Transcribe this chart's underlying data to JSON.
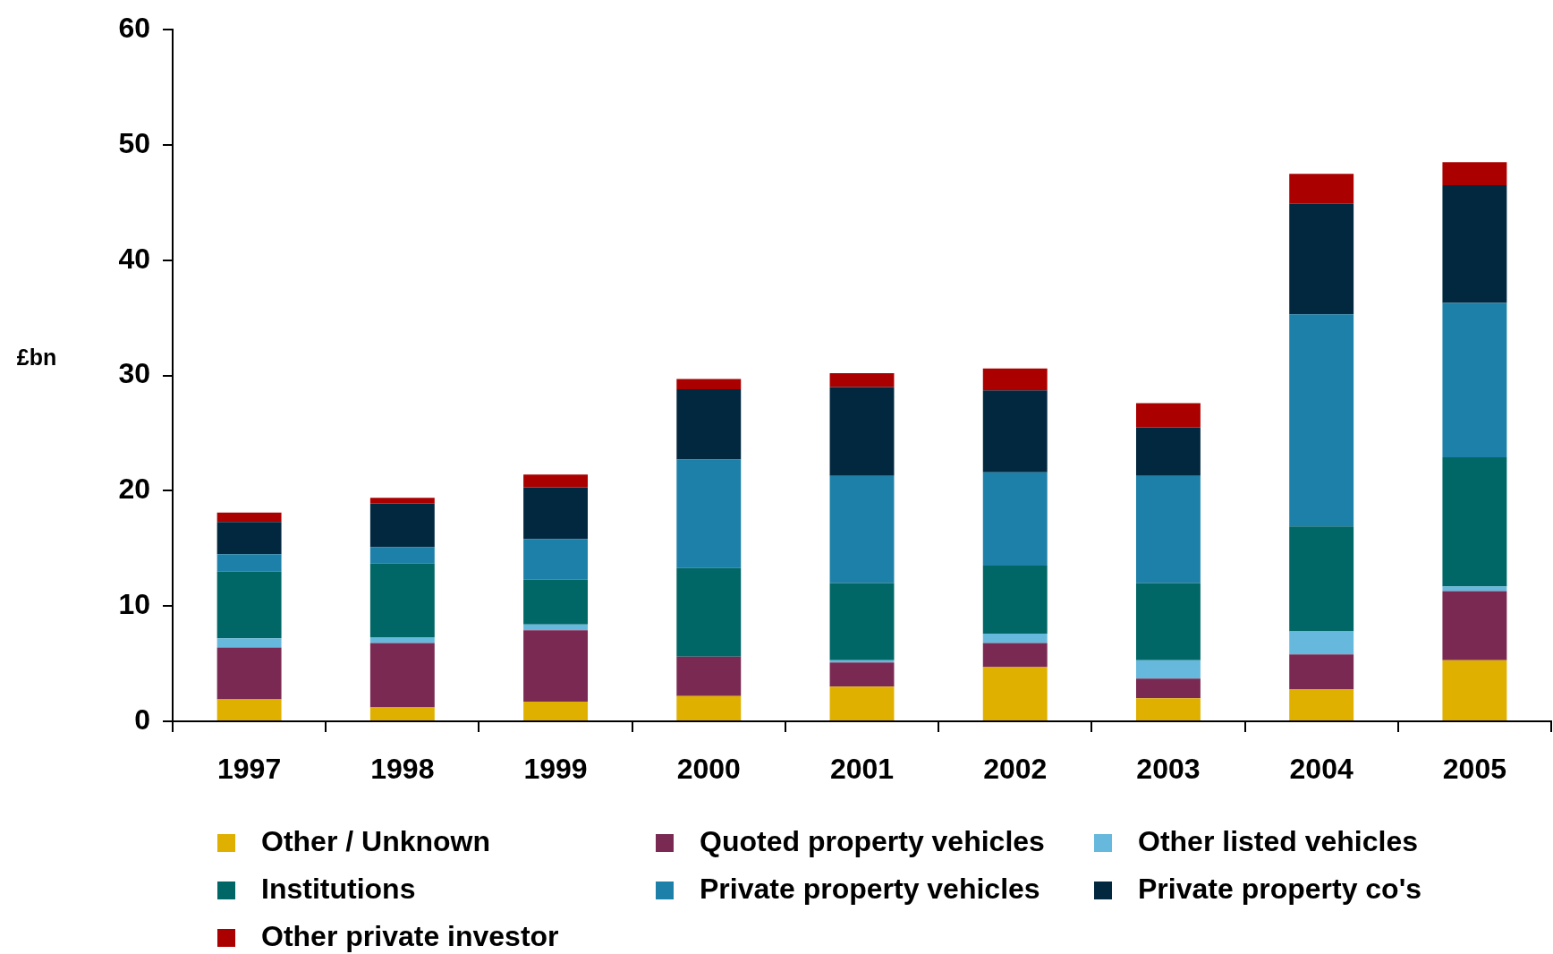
{
  "chart_data": {
    "type": "bar",
    "stacked": true,
    "ylabel": "£bn",
    "legend": "bottom",
    "categories": [
      "1997",
      "1998",
      "1999",
      "2000",
      "2001",
      "2002",
      "2003",
      "2004",
      "2005"
    ],
    "ylim": [
      0,
      60
    ],
    "yticks": [
      0,
      10,
      20,
      30,
      40,
      50,
      60
    ],
    "series": [
      {
        "name": "Other / Unknown",
        "color": "#e0b000",
        "values": [
          1.9,
          1.2,
          1.7,
          2.2,
          3.0,
          4.7,
          2.0,
          2.8,
          5.3
        ]
      },
      {
        "name": "Quoted property vehicles",
        "color": "#7a2a52",
        "values": [
          4.5,
          5.6,
          6.2,
          3.4,
          2.1,
          2.1,
          1.7,
          3.0,
          6.0
        ]
      },
      {
        "name": "Other listed vehicles",
        "color": "#66b8dc",
        "values": [
          0.8,
          0.5,
          0.5,
          0,
          0.2,
          0.8,
          1.6,
          2.0,
          0.4
        ]
      },
      {
        "name": "Institutions",
        "color": "#006666",
        "values": [
          5.8,
          6.4,
          3.9,
          7.7,
          6.7,
          5.9,
          6.7,
          9.1,
          11.2
        ]
      },
      {
        "name": "Private property vehicles",
        "color": "#1d80a8",
        "values": [
          1.5,
          1.4,
          3.5,
          9.4,
          9.3,
          8.1,
          9.3,
          18.4,
          13.4
        ]
      },
      {
        "name": "Private property co's",
        "color": "#022840",
        "values": [
          2.8,
          3.8,
          4.5,
          6.1,
          7.7,
          7.1,
          4.2,
          9.6,
          10.2
        ]
      },
      {
        "name": "Other private investor",
        "color": "#aa0000",
        "values": [
          0.8,
          0.5,
          1.1,
          0.9,
          1.2,
          1.9,
          2.1,
          2.6,
          2.0
        ]
      }
    ]
  }
}
